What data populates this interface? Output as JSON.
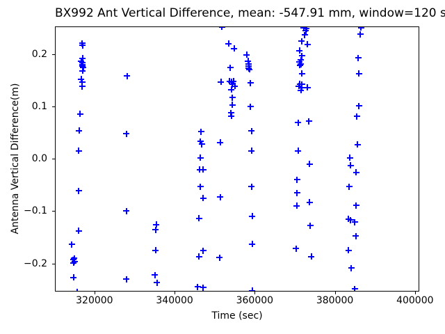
{
  "figure": {
    "title": "BX992 Ant Vertical Difference, mean: -547.91 mm, window=120 secs"
  },
  "chart_data": {
    "type": "scatter",
    "title": "BX992 Ant Vertical Difference, mean: -547.91 mm, window=120 secs",
    "xlabel": "Time (sec)",
    "ylabel": "Antenna Vertical Difference(m)",
    "mean_mm": -547.91,
    "window_secs": 120,
    "marker": "plus",
    "marker_color": "#0000ff",
    "grid": false,
    "legend": "none",
    "xlim": [
      310300,
      400900
    ],
    "ylim": [
      -0.2525,
      0.2517
    ],
    "x_ticks": [
      320000,
      340000,
      360000,
      380000,
      400000
    ],
    "x_tick_labels": [
      "320000",
      "340000",
      "360000",
      "380000",
      "400000"
    ],
    "y_ticks": [
      0.2,
      0.1,
      0.0,
      -0.1,
      -0.2
    ],
    "y_tick_labels": [
      "0.2",
      "0.1",
      "0.0",
      "−0.1",
      "−0.2"
    ],
    "points": [
      [
        316900,
        0.221
      ],
      [
        317050,
        0.217
      ],
      [
        317050,
        0.192
      ],
      [
        316700,
        0.187
      ],
      [
        317050,
        0.184
      ],
      [
        316900,
        0.18
      ],
      [
        317050,
        0.177
      ],
      [
        317200,
        0.174
      ],
      [
        317050,
        0.168
      ],
      [
        316700,
        0.152
      ],
      [
        316900,
        0.146
      ],
      [
        316900,
        0.138
      ],
      [
        316400,
        0.086
      ],
      [
        316200,
        0.054
      ],
      [
        316050,
        0.015
      ],
      [
        316050,
        -0.061
      ],
      [
        316050,
        -0.138
      ],
      [
        314300,
        -0.164
      ],
      [
        314900,
        -0.19
      ],
      [
        314650,
        -0.193
      ],
      [
        315000,
        -0.196
      ],
      [
        314800,
        -0.199
      ],
      [
        314800,
        -0.227
      ],
      [
        315700,
        -0.254
      ],
      [
        328100,
        0.158
      ],
      [
        327950,
        0.048
      ],
      [
        327950,
        -0.1
      ],
      [
        327950,
        -0.23
      ],
      [
        335400,
        -0.126
      ],
      [
        335250,
        -0.136
      ],
      [
        335250,
        -0.175
      ],
      [
        335100,
        -0.222
      ],
      [
        335600,
        -0.237
      ],
      [
        346600,
        0.052
      ],
      [
        346450,
        0.033
      ],
      [
        346800,
        0.028
      ],
      [
        346450,
        0.002
      ],
      [
        346300,
        -0.021
      ],
      [
        347100,
        -0.021
      ],
      [
        346450,
        -0.053
      ],
      [
        347100,
        -0.075
      ],
      [
        346100,
        -0.114
      ],
      [
        347100,
        -0.176
      ],
      [
        346100,
        -0.187
      ],
      [
        345750,
        -0.245
      ],
      [
        347100,
        -0.246
      ],
      [
        351800,
        0.252
      ],
      [
        351600,
        0.147
      ],
      [
        351400,
        0.031
      ],
      [
        351400,
        -0.073
      ],
      [
        351250,
        -0.189
      ],
      [
        353500,
        0.22
      ],
      [
        354900,
        0.211
      ],
      [
        353900,
        0.174
      ],
      [
        353700,
        0.148
      ],
      [
        354200,
        0.147
      ],
      [
        354700,
        0.148
      ],
      [
        354400,
        0.142
      ],
      [
        355050,
        0.139
      ],
      [
        354200,
        0.132
      ],
      [
        354400,
        0.117
      ],
      [
        354400,
        0.103
      ],
      [
        354050,
        0.088
      ],
      [
        354200,
        0.082
      ],
      [
        358000,
        0.199
      ],
      [
        358350,
        0.187
      ],
      [
        358500,
        0.181
      ],
      [
        358500,
        0.177
      ],
      [
        358500,
        0.173
      ],
      [
        358650,
        0.171
      ],
      [
        358900,
        0.145
      ],
      [
        358900,
        0.1
      ],
      [
        359200,
        0.053
      ],
      [
        359200,
        0.015
      ],
      [
        359200,
        -0.053
      ],
      [
        359400,
        -0.11
      ],
      [
        359400,
        -0.163
      ],
      [
        359400,
        -0.252
      ],
      [
        372200,
        0.251
      ],
      [
        372900,
        0.249
      ],
      [
        372700,
        0.245
      ],
      [
        372500,
        0.237
      ],
      [
        371700,
        0.225
      ],
      [
        373200,
        0.219
      ],
      [
        371200,
        0.207
      ],
      [
        371800,
        0.197
      ],
      [
        371500,
        0.189
      ],
      [
        371200,
        0.185
      ],
      [
        371500,
        0.181
      ],
      [
        371300,
        0.179
      ],
      [
        371800,
        0.163
      ],
      [
        371300,
        0.143
      ],
      [
        371800,
        0.142
      ],
      [
        371000,
        0.139
      ],
      [
        371700,
        0.136
      ],
      [
        373200,
        0.136
      ],
      [
        371500,
        0.131
      ],
      [
        373500,
        0.072
      ],
      [
        370800,
        0.069
      ],
      [
        370800,
        0.015
      ],
      [
        373700,
        -0.01
      ],
      [
        370600,
        -0.04
      ],
      [
        370600,
        -0.065
      ],
      [
        373700,
        -0.083
      ],
      [
        370450,
        -0.09
      ],
      [
        373900,
        -0.128
      ],
      [
        370300,
        -0.172
      ],
      [
        374100,
        -0.187
      ],
      [
        386500,
        0.251
      ],
      [
        386350,
        0.238
      ],
      [
        385800,
        0.193
      ],
      [
        386000,
        0.163
      ],
      [
        386000,
        0.101
      ],
      [
        385500,
        0.081
      ],
      [
        385700,
        0.027
      ],
      [
        383800,
        0.002
      ],
      [
        383900,
        -0.013
      ],
      [
        385300,
        -0.026
      ],
      [
        383600,
        -0.053
      ],
      [
        385300,
        -0.089
      ],
      [
        383450,
        -0.115
      ],
      [
        383950,
        -0.117
      ],
      [
        384950,
        -0.121
      ],
      [
        385200,
        -0.148
      ],
      [
        383450,
        -0.175
      ],
      [
        384100,
        -0.209
      ],
      [
        385000,
        -0.249
      ]
    ]
  }
}
